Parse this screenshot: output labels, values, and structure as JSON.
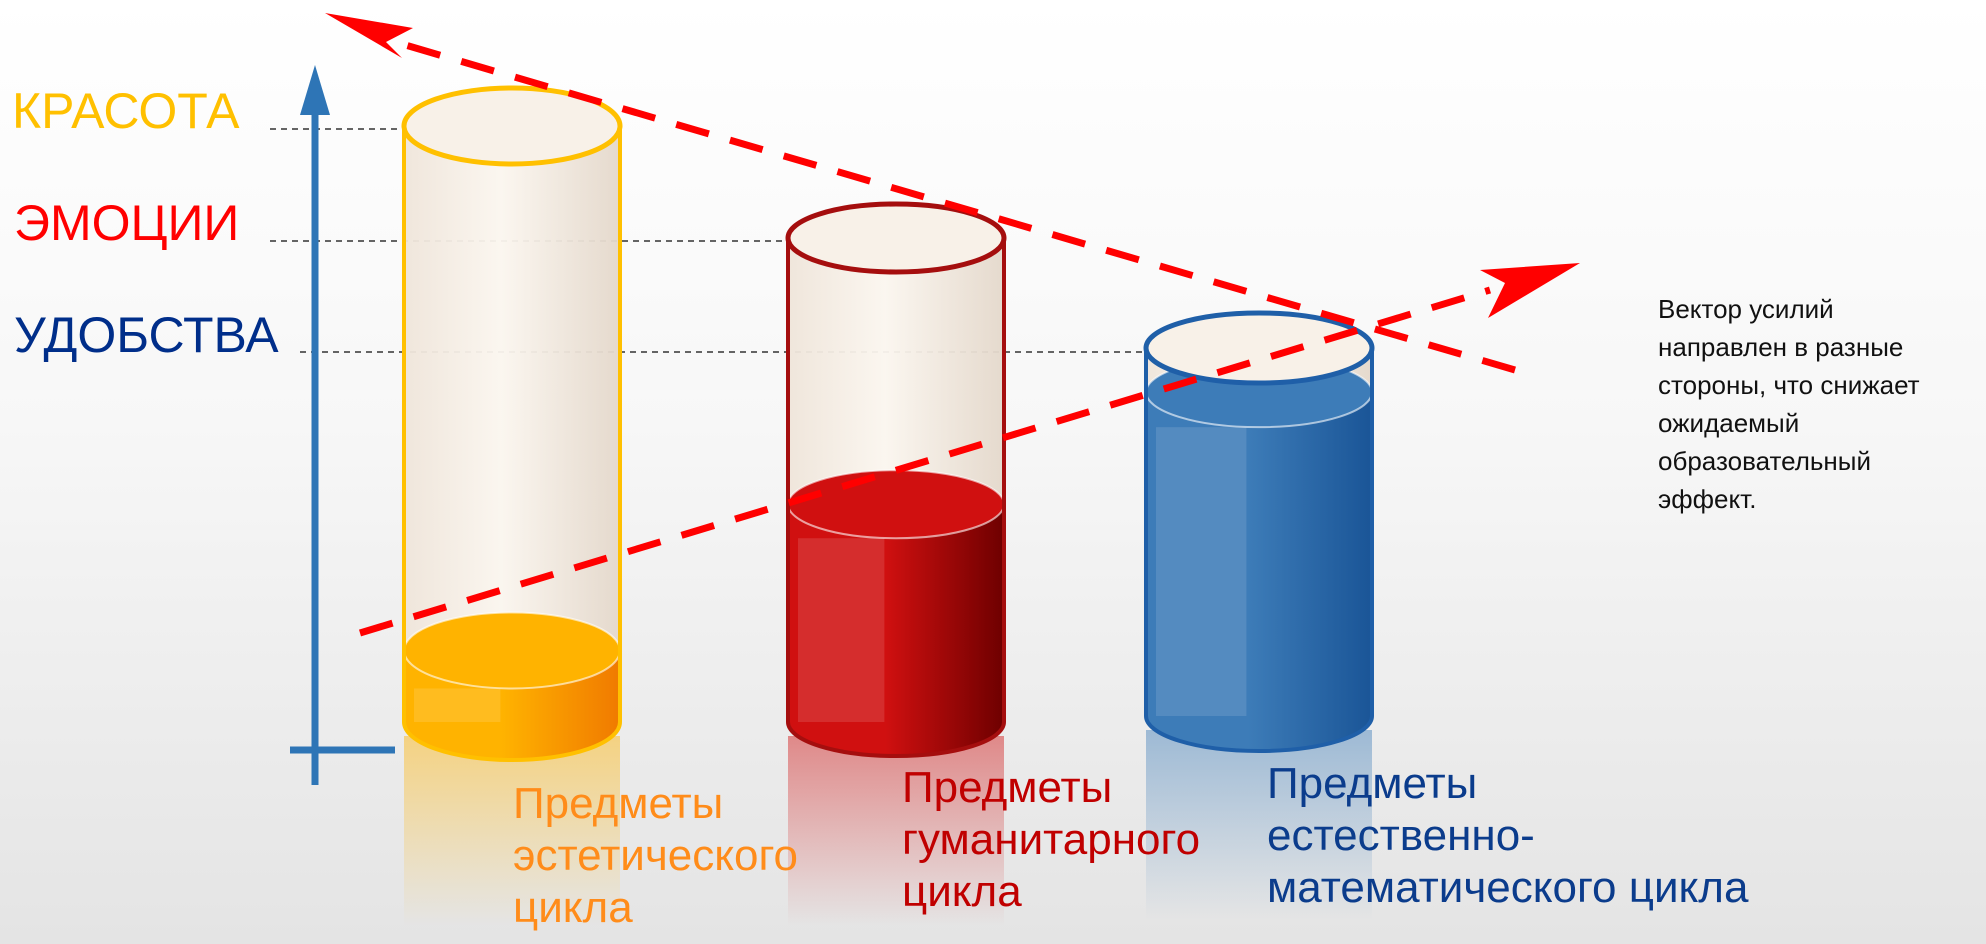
{
  "levels": [
    {
      "label": "КРАСОТА",
      "color": "#FFC000"
    },
    {
      "label": "ЭМОЦИИ",
      "color": "#FF0000"
    },
    {
      "label": "УДОБСТВА",
      "color": "#002E8A"
    }
  ],
  "cylinders": [
    {
      "name": "aesthetic",
      "lines": [
        "Предметы",
        "эстетического",
        "цикла"
      ],
      "label_color": "#FF8C1A",
      "outline_color": "#FFC000",
      "fill_color": "#FFB300",
      "fill_dark": "#F07A00",
      "fill_level": 0.12
    },
    {
      "name": "humanitarian",
      "lines": [
        "Предметы",
        "гуманитарного",
        "цикла"
      ],
      "label_color": "#C00000",
      "outline_color": "#A50E0E",
      "fill_color": "#D01010",
      "fill_dark": "#6E0000",
      "fill_level": 0.45
    },
    {
      "name": "natural-math",
      "lines": [
        "Предметы",
        "естественно-",
        "математического цикла"
      ],
      "label_color": "#0B3C8C",
      "outline_color": "#1F5FA8",
      "fill_color": "#3D7CB8",
      "fill_dark": "#1A5597",
      "fill_level": 0.88
    }
  ],
  "note": {
    "lines": [
      "Вектор усилий",
      "направлен в разные",
      "стороны, что снижает",
      "ожидаемый",
      "образовательный",
      "эффект."
    ]
  },
  "colors": {
    "axis": "#2E75B6",
    "arrows": "#FF0000",
    "guide": "#333333"
  },
  "icons": [
    "axis-up-arrow-icon",
    "decreasing-arrow-icon",
    "increasing-arrow-icon"
  ]
}
